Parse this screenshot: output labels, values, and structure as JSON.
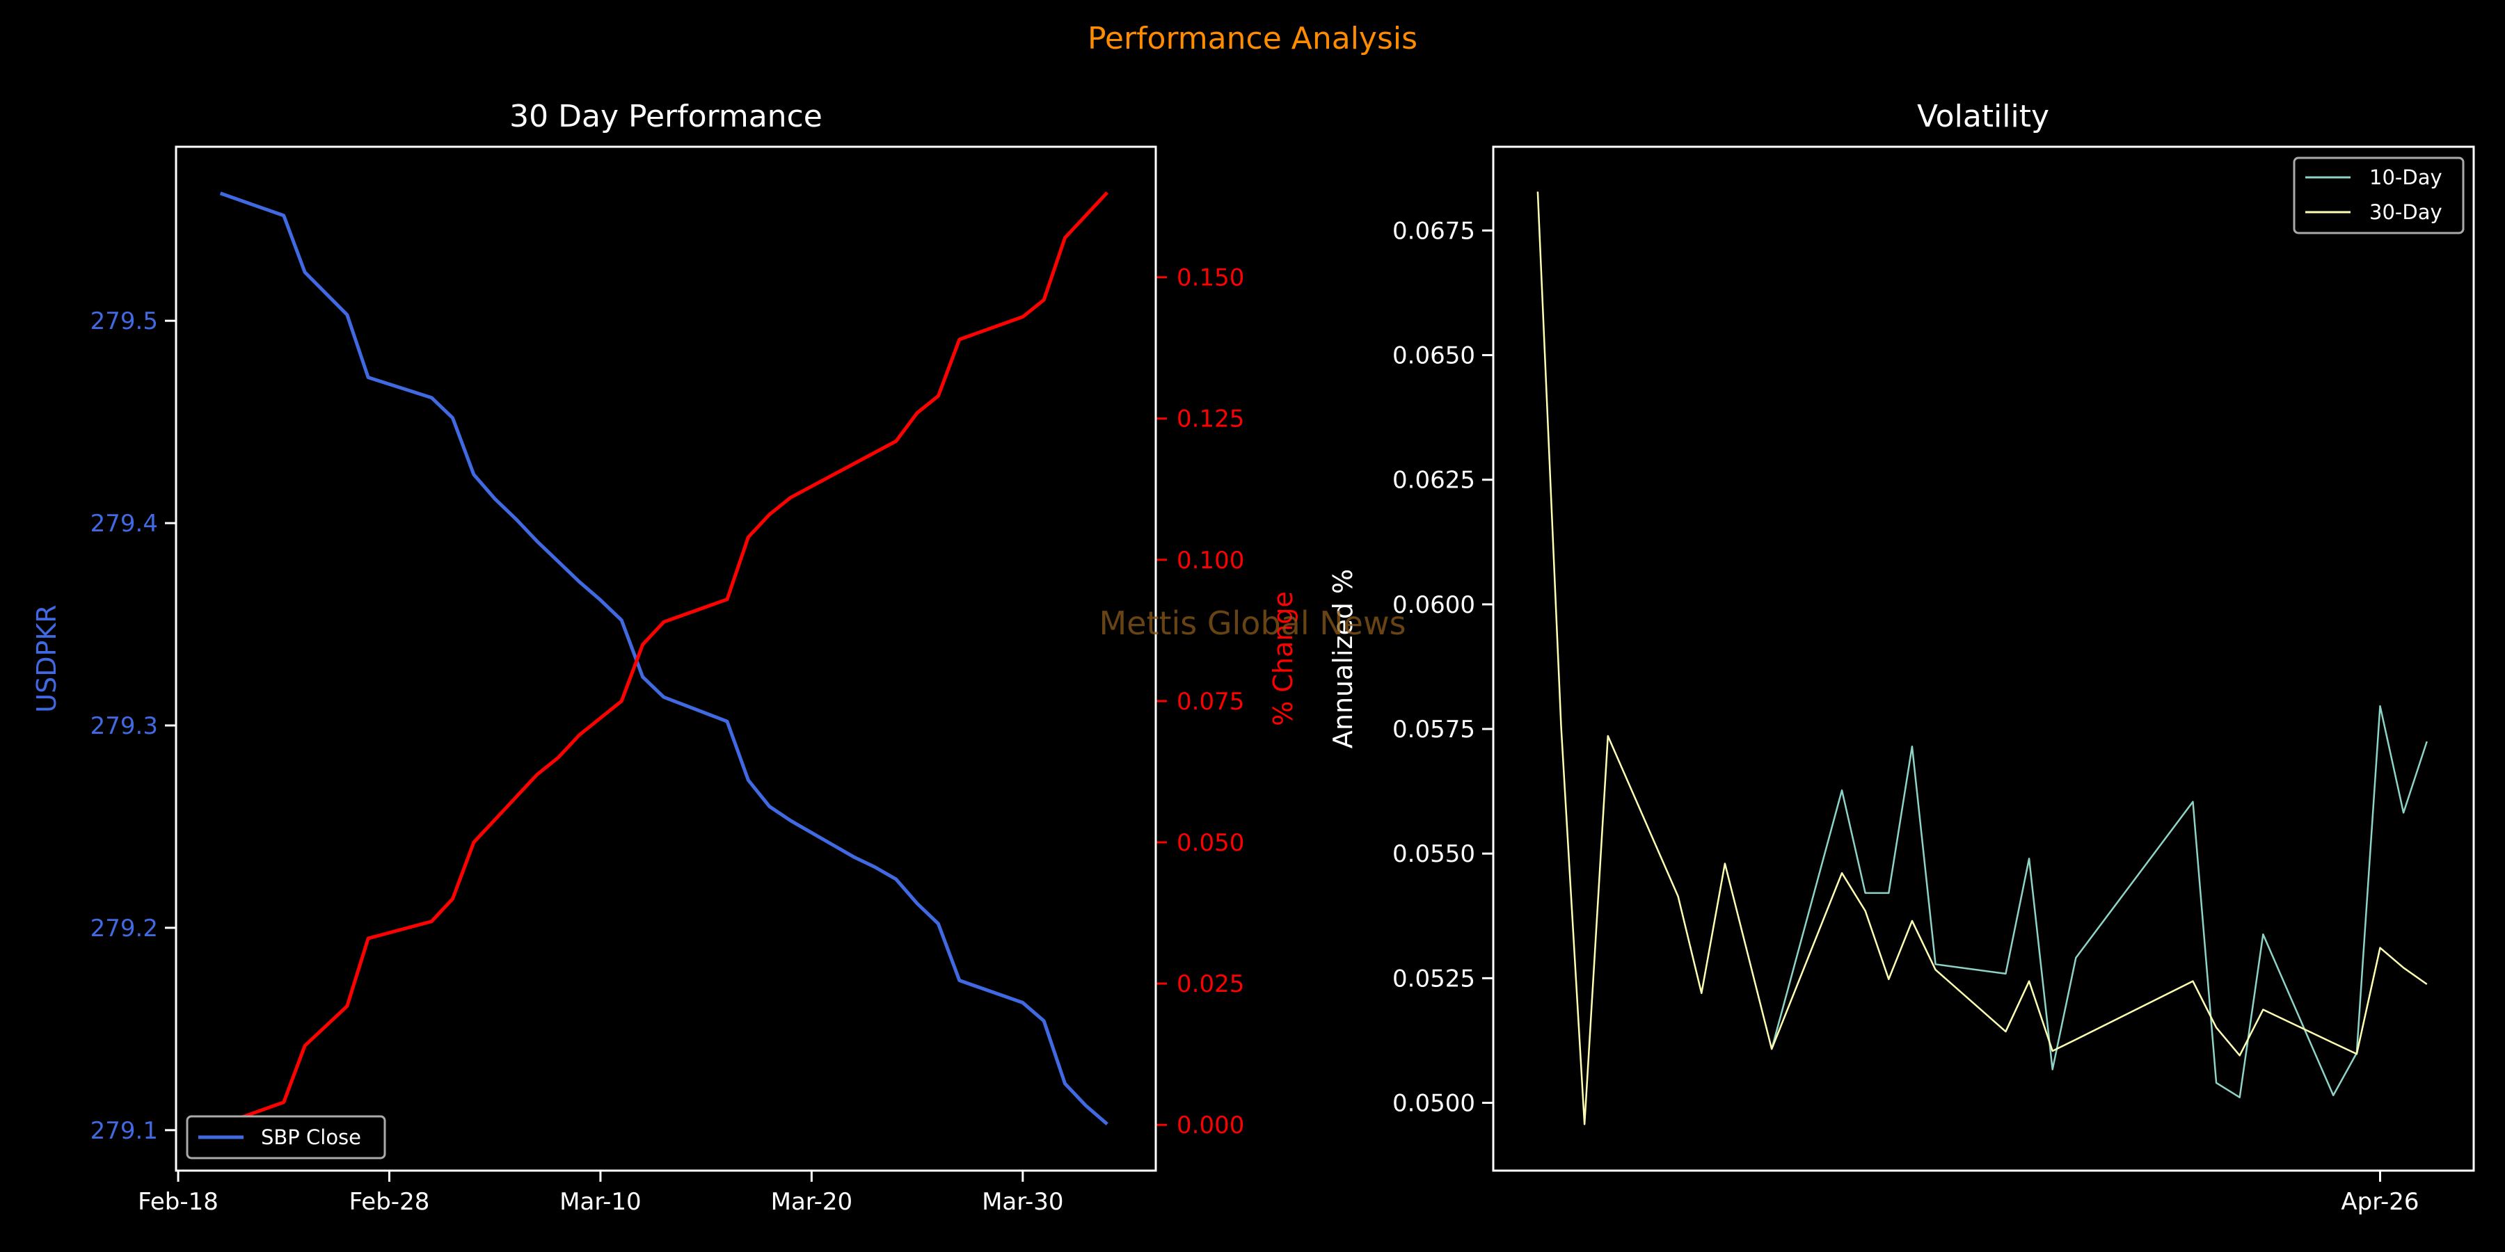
{
  "suptitle": "Performance Analysis",
  "watermark": "Mettis Global News",
  "colors": {
    "background": "#000000",
    "title": "#FF8C00",
    "close": "#4169E1",
    "change": "#FF0000",
    "vol10": "#8DD3C7",
    "vol30": "#FFFFB3",
    "watermark": "#8B5A1A",
    "axes": "#FFFFFF"
  },
  "chart_data": [
    {
      "type": "line",
      "title": "30 Day Performance",
      "xlabel": "",
      "ylabel": "USDPKR",
      "ylabel_right": "% Change",
      "xticks": [
        "Feb-18",
        "Feb-28",
        "Mar-10",
        "Mar-20",
        "Mar-30"
      ],
      "xtick_days": [
        0,
        10,
        20,
        30,
        40
      ],
      "x_origin": "Feb-18",
      "xlim_days": [
        -0.1,
        46.3
      ],
      "ylim": [
        279.08,
        279.586
      ],
      "yticks": [
        279.1,
        279.2,
        279.3,
        279.4,
        279.5
      ],
      "ylim_right": [
        -0.0081,
        0.1731
      ],
      "yticks_right": [
        0.0,
        0.025,
        0.05,
        0.075,
        0.1,
        0.125,
        0.15
      ],
      "legend": {
        "position": "lower-left",
        "entries": [
          "SBP Close"
        ]
      },
      "x_days": [
        2,
        5,
        6,
        8,
        9,
        12,
        13,
        14,
        15,
        16,
        17,
        18,
        19,
        20,
        21,
        22,
        23,
        26,
        27,
        28,
        29,
        30,
        31,
        32,
        33,
        34,
        35,
        36,
        37,
        40,
        41,
        42,
        43,
        44
      ],
      "x": [
        "Feb-20",
        "Feb-23",
        "Feb-24",
        "Feb-26",
        "Feb-27",
        "Mar-02",
        "Mar-03",
        "Mar-04",
        "Mar-05",
        "Mar-06",
        "Mar-07",
        "Mar-08",
        "Mar-09",
        "Mar-10",
        "Mar-11",
        "Mar-12",
        "Mar-13",
        "Mar-16",
        "Mar-17",
        "Mar-18",
        "Mar-19",
        "Mar-20",
        "Mar-21",
        "Mar-22",
        "Mar-23",
        "Mar-24",
        "Mar-25",
        "Mar-26",
        "Mar-27",
        "Mar-30",
        "Mar-31",
        "Apr-01",
        "Apr-02",
        "Apr-03"
      ],
      "series": [
        {
          "name": "SBP Close",
          "axis": "left",
          "values": [
            279.563,
            279.552,
            279.524,
            279.503,
            279.472,
            279.462,
            279.452,
            279.424,
            279.412,
            279.402,
            279.391,
            279.381,
            279.371,
            279.362,
            279.352,
            279.324,
            279.314,
            279.302,
            279.273,
            279.26,
            279.253,
            279.247,
            279.241,
            279.235,
            279.23,
            279.224,
            279.212,
            279.202,
            279.174,
            279.163,
            279.154,
            279.123,
            279.112,
            279.103
          ]
        },
        {
          "name": "% Change",
          "axis": "right",
          "values": [
            0.0,
            0.004,
            0.014,
            0.021,
            0.033,
            0.036,
            0.04,
            0.05,
            0.054,
            0.058,
            0.062,
            0.065,
            0.069,
            0.072,
            0.075,
            0.085,
            0.089,
            0.093,
            0.104,
            0.108,
            0.111,
            0.113,
            0.115,
            0.117,
            0.119,
            0.121,
            0.126,
            0.129,
            0.139,
            0.143,
            0.146,
            0.157,
            0.161,
            0.165
          ]
        }
      ]
    },
    {
      "type": "line",
      "title": "Volatility",
      "xlabel": "",
      "ylabel": "Annualized %",
      "xticks": [
        "Apr-26"
      ],
      "xtick_index": [
        36
      ],
      "xlim_index": [
        -1.9,
        40.0
      ],
      "ylim": [
        0.04864,
        0.06918
      ],
      "yticks": [
        0.05,
        0.0525,
        0.055,
        0.0575,
        0.06,
        0.0625,
        0.065,
        0.0675
      ],
      "legend": {
        "position": "upper-right",
        "entries": [
          "10-Day",
          "30-Day"
        ]
      },
      "series": [
        {
          "name": "10-Day",
          "index": [
            10,
            13,
            14,
            15,
            16,
            17,
            20,
            21,
            22,
            23,
            28,
            29,
            30,
            31,
            34,
            35,
            36,
            37,
            38
          ],
          "values": [
            0.05108,
            0.05627,
            0.05421,
            0.05421,
            0.05715,
            0.05278,
            0.05259,
            0.0549,
            0.05067,
            0.05291,
            0.05604,
            0.0504,
            0.05011,
            0.05338,
            0.05015,
            0.051,
            0.05796,
            0.05582,
            0.05725
          ]
        },
        {
          "name": "30-Day",
          "index": [
            0,
            1,
            2,
            3,
            6,
            7,
            8,
            10,
            13,
            14,
            15,
            16,
            17,
            20,
            21,
            22,
            23,
            28,
            29,
            30,
            31,
            34,
            35,
            36,
            37,
            38
          ],
          "values": [
            0.06828,
            0.05755,
            0.04957,
            0.05736,
            0.05414,
            0.0522,
            0.0548,
            0.05108,
            0.05461,
            0.05385,
            0.05248,
            0.05365,
            0.05267,
            0.05143,
            0.05244,
            0.05104,
            0.05127,
            0.05244,
            0.05151,
            0.05095,
            0.05187,
            0.0512,
            0.05098,
            0.05311,
            0.05271,
            0.05238
          ]
        }
      ]
    }
  ]
}
